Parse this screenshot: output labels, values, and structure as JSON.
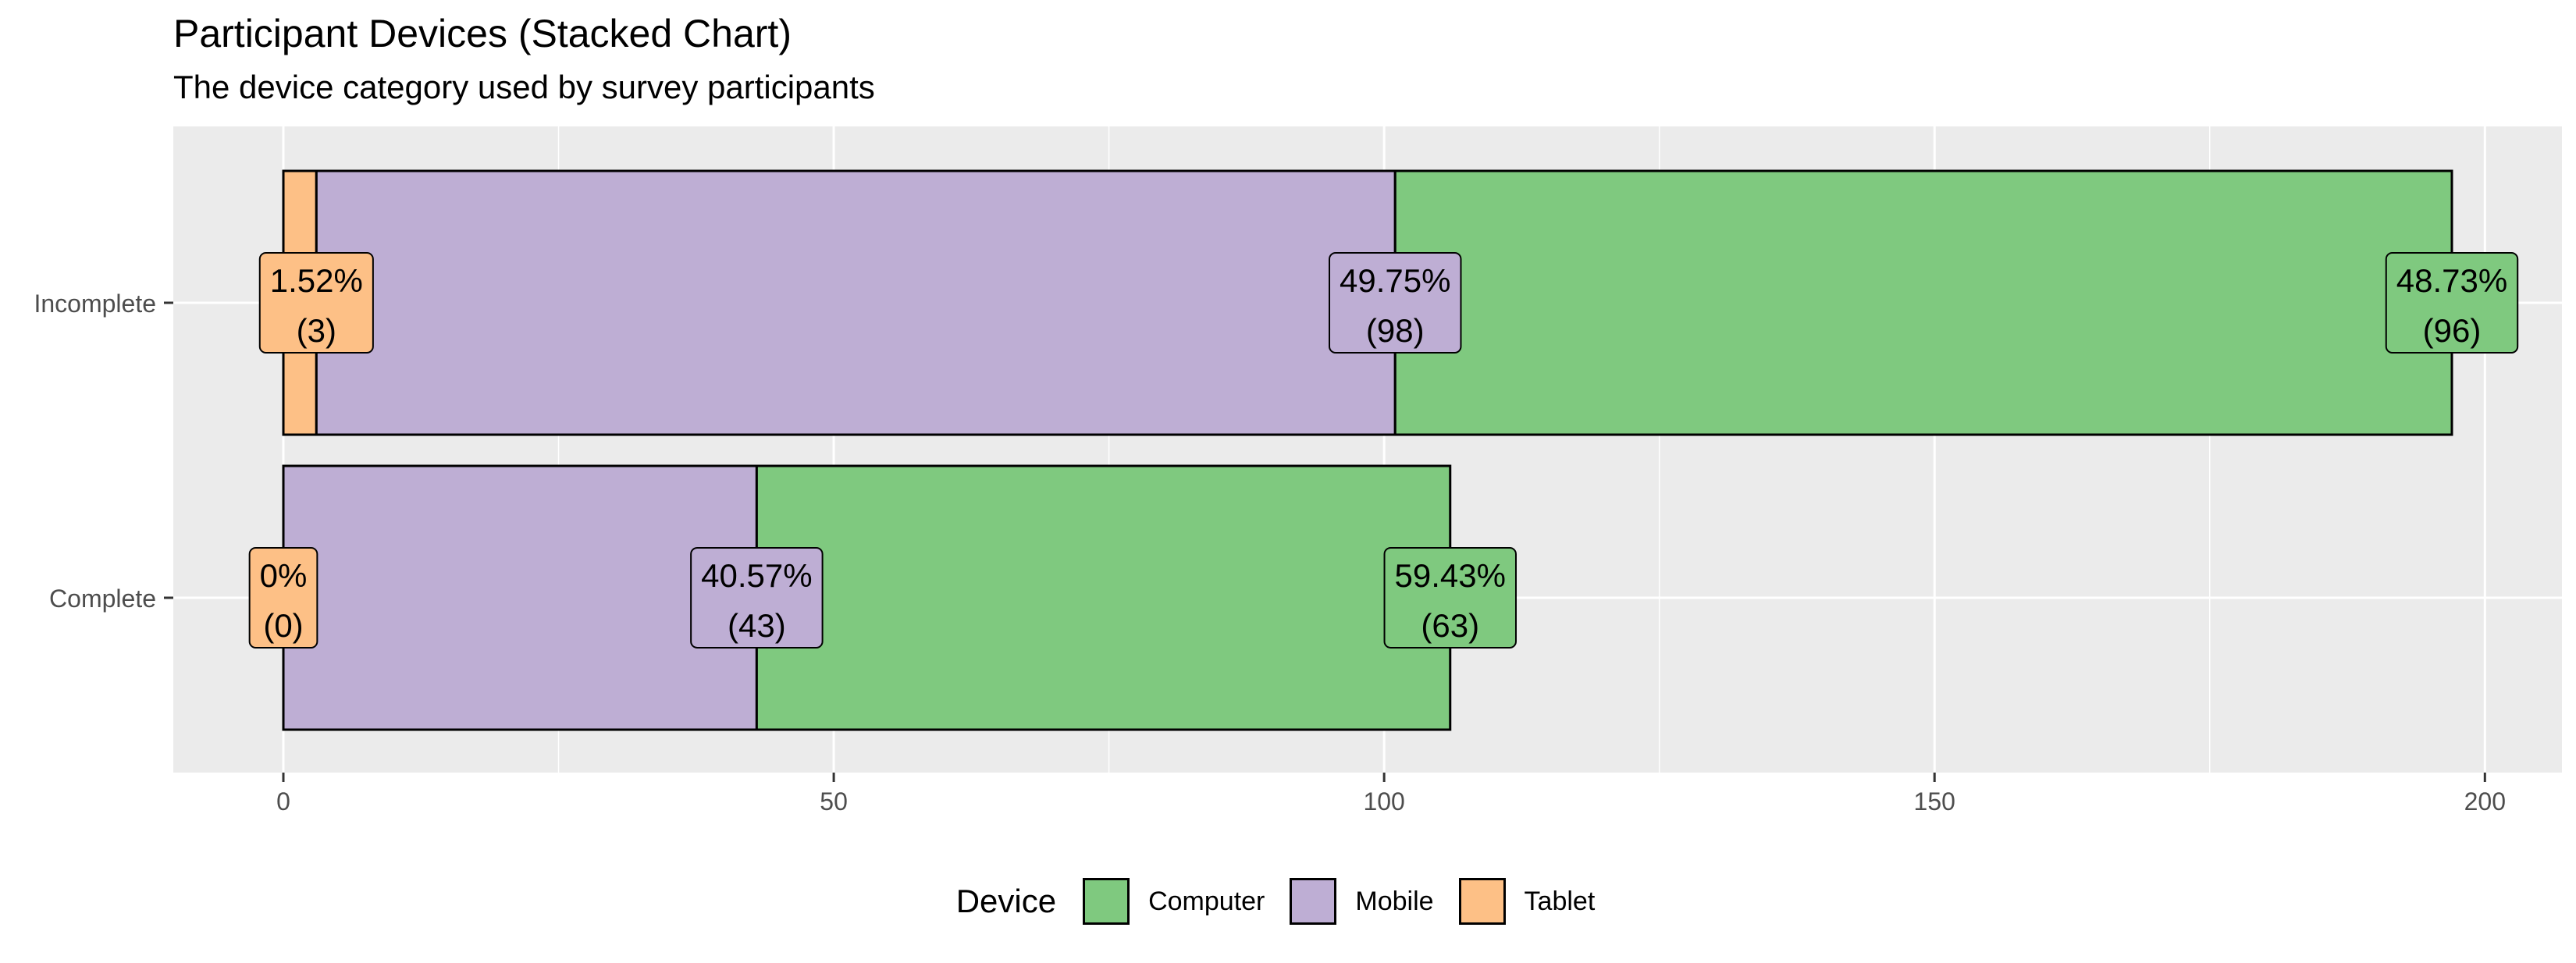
{
  "chart_data": {
    "type": "bar",
    "orientation": "horizontal",
    "stacked": true,
    "title": "Participant Devices (Stacked Chart)",
    "subtitle": "The device category used by survey participants",
    "xlabel": "",
    "ylabel": "",
    "categories": [
      "Incomplete",
      "Complete"
    ],
    "series": [
      {
        "name": "Tablet",
        "color": "#FDC086",
        "values": [
          3,
          0
        ],
        "percent_labels": [
          "1.52%",
          "0%"
        ],
        "count_labels": [
          "(3)",
          "(0)"
        ]
      },
      {
        "name": "Mobile",
        "color": "#BEAED4",
        "values": [
          98,
          43
        ],
        "percent_labels": [
          "49.75%",
          "40.57%"
        ],
        "count_labels": [
          "(98)",
          "(43)"
        ]
      },
      {
        "name": "Computer",
        "color": "#7FC97F",
        "values": [
          96,
          63
        ],
        "percent_labels": [
          "48.73%",
          "59.43%"
        ],
        "count_labels": [
          "(96)",
          "(63)"
        ]
      }
    ],
    "xlim": [
      -10,
      207
    ],
    "x_ticks": [
      0,
      50,
      100,
      150,
      200
    ],
    "x_tick_labels": [
      "0",
      "50",
      "100",
      "150",
      "200"
    ],
    "grid": true,
    "legend": {
      "title": "Device",
      "position": "bottom",
      "entries": [
        "Computer",
        "Mobile",
        "Tablet"
      ]
    }
  }
}
